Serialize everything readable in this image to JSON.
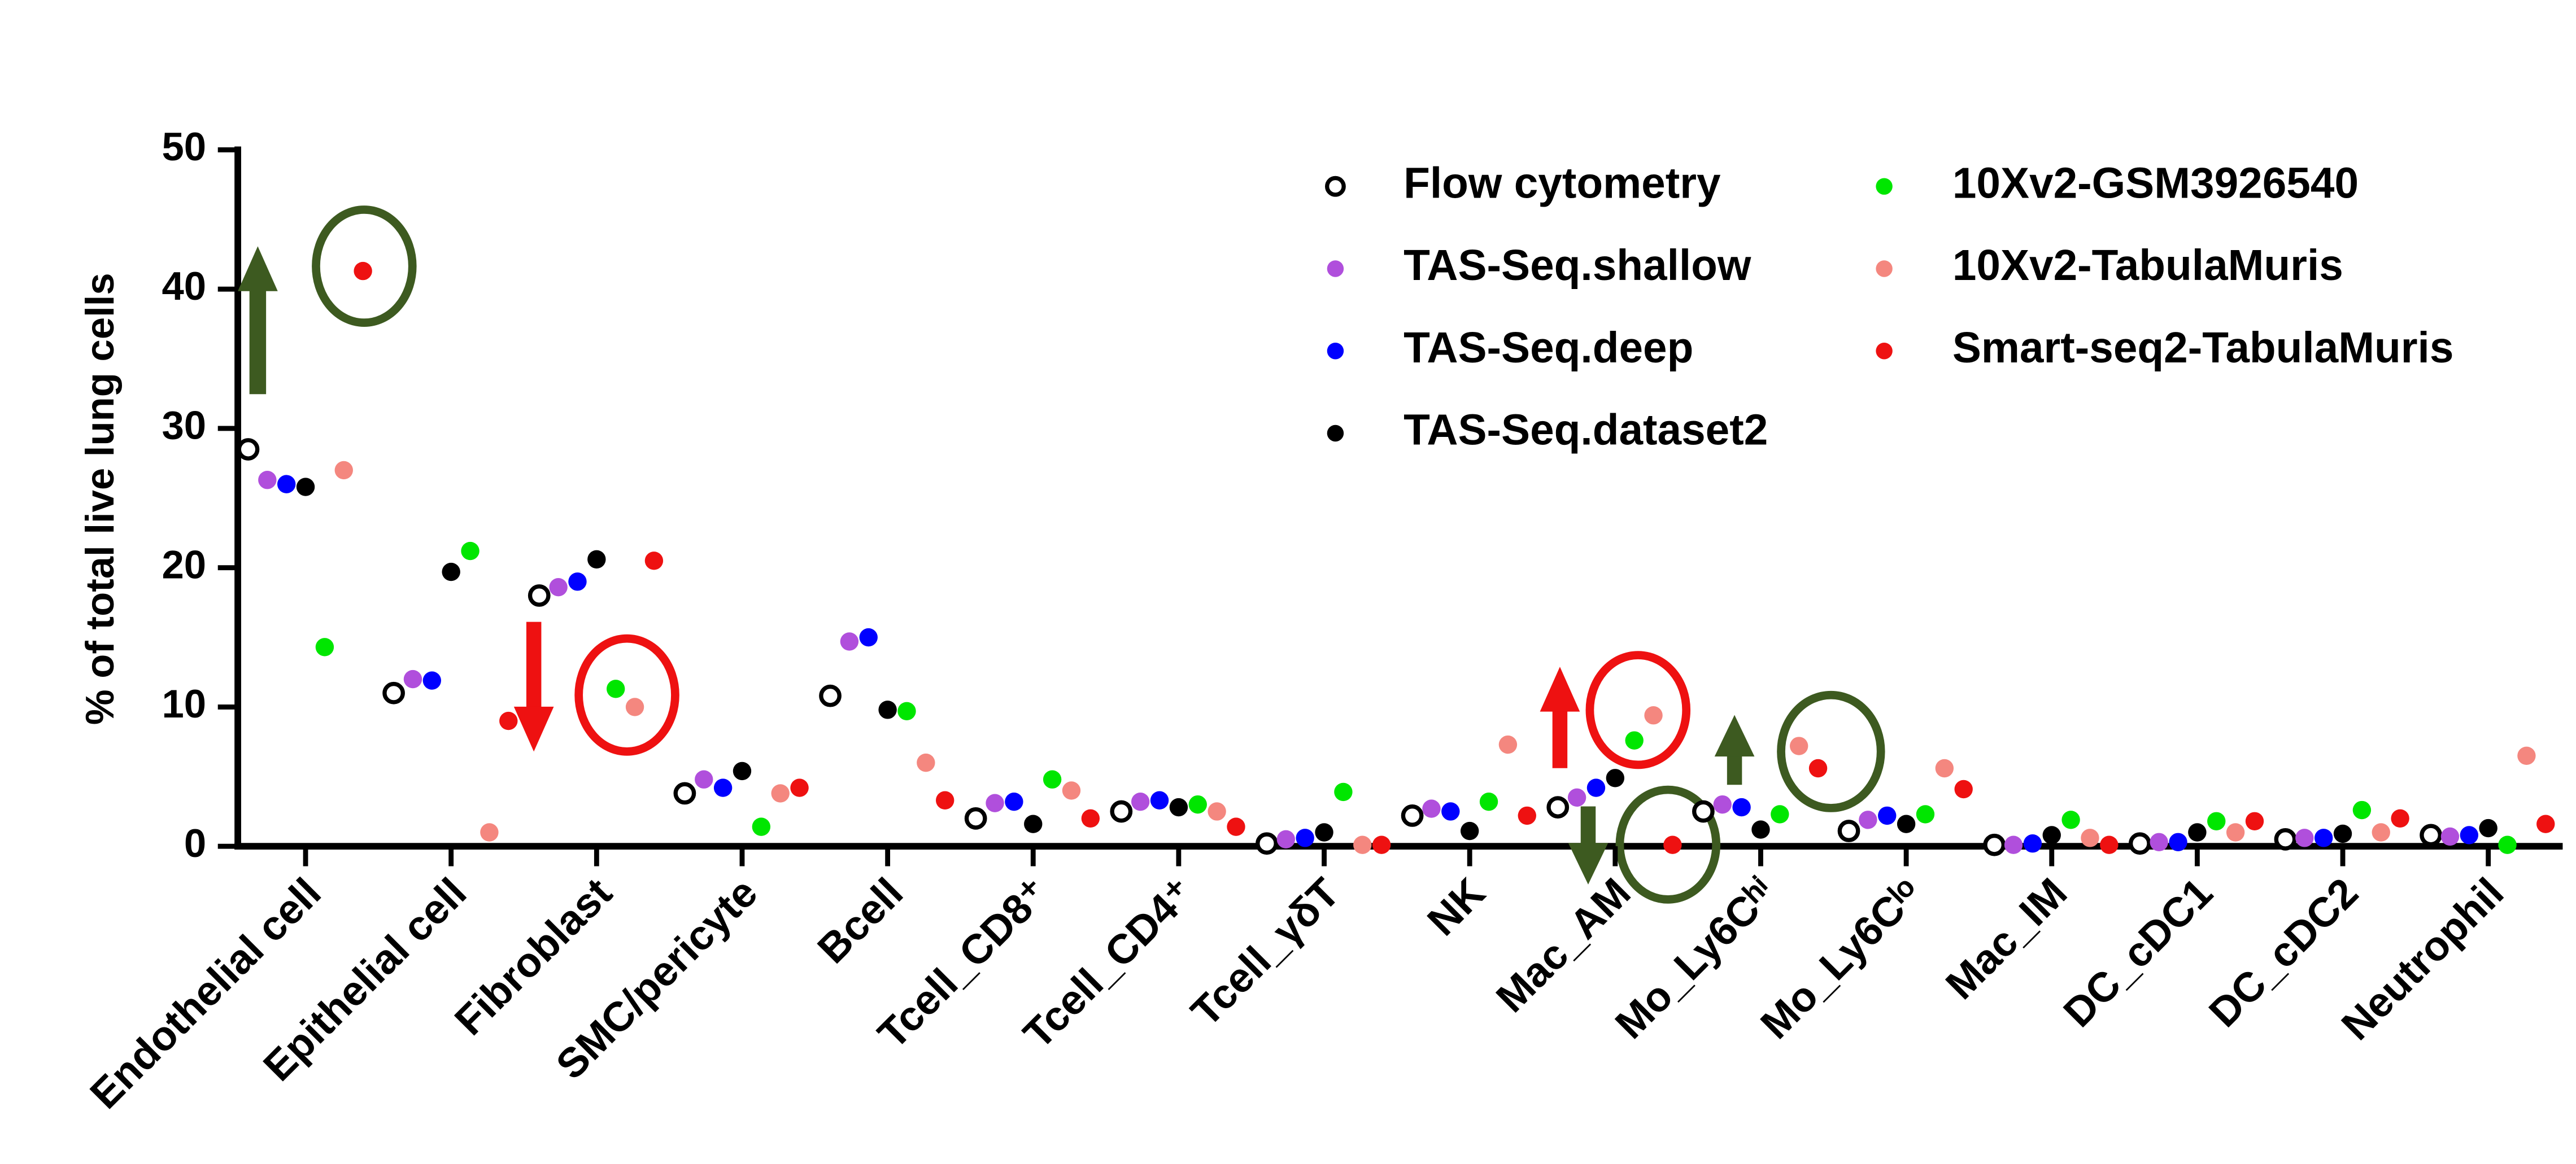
{
  "chart_data": {
    "type": "scatter",
    "y_label": "% of total live lung cells",
    "categories": [
      "Endothelial cell",
      "Epithelial cell",
      "Fibroblast",
      "SMC/pericyte",
      "Bcell",
      "Tcell_CD8⁺",
      "Tcell_CD4⁺",
      "Tcell_γδT",
      "NK",
      "Mac_AM",
      "Mo_Ly6Cʰⁱ",
      "Mo_Ly6Cˡᵒ",
      "Mac_IM",
      "DC_cDC1",
      "DC_cDC2",
      "Neutrophil"
    ],
    "series": [
      {
        "name": "Flow cytometry",
        "color": "#000000",
        "marker": "open",
        "values": [
          28.5,
          11,
          18,
          3.8,
          10.8,
          2,
          2.5,
          0.2,
          2.2,
          2.8,
          2.5,
          1.1,
          0.1,
          0.2,
          0.5,
          0.8
        ]
      },
      {
        "name": "TAS-Seq.shallow",
        "color": "#b04fdc",
        "marker": "filled",
        "values": [
          26.3,
          12,
          18.6,
          4.8,
          14.7,
          3.1,
          3.2,
          0.5,
          2.7,
          3.5,
          3,
          1.9,
          0.1,
          0.3,
          0.6,
          0.7
        ]
      },
      {
        "name": "TAS-Seq.deep",
        "color": "#0000ff",
        "marker": "filled",
        "values": [
          26,
          11.9,
          19,
          4.2,
          15,
          3.2,
          3.3,
          0.6,
          2.5,
          4.2,
          2.8,
          2.2,
          0.2,
          0.3,
          0.6,
          0.8
        ]
      },
      {
        "name": "TAS-Seq.dataset2",
        "color": "#000000",
        "marker": "filled",
        "values": [
          25.8,
          19.7,
          20.6,
          5.4,
          9.8,
          1.6,
          2.8,
          1,
          1.1,
          4.9,
          1.2,
          1.6,
          0.8,
          1,
          0.9,
          1.3
        ]
      },
      {
        "name": "10Xv2-GSM3926540",
        "color": "#00e600",
        "marker": "filled",
        "values": [
          14.3,
          21.2,
          11.3,
          1.4,
          9.7,
          4.8,
          3,
          3.9,
          3.2,
          7.6,
          2.3,
          2.3,
          1.9,
          1.8,
          2.6,
          0.1
        ]
      },
      {
        "name": "10Xv2-TabulaMuris",
        "color": "#f4877f",
        "marker": "filled",
        "values": [
          27,
          1,
          10,
          3.8,
          6,
          4,
          2.5,
          0.1,
          7.3,
          9.4,
          7.2,
          5.6,
          0.6,
          1,
          1,
          6.5
        ]
      },
      {
        "name": "Smart-seq2-TabulaMuris",
        "color": "#ee1111",
        "marker": "filled",
        "values": [
          41.3,
          9,
          20.5,
          4.2,
          3.3,
          2,
          1.4,
          0.1,
          2.2,
          0.1,
          5.6,
          4.1,
          0.1,
          1.8,
          2,
          1.6
        ]
      }
    ],
    "ylim": [
      0,
      50
    ],
    "yticks": [
      0,
      10,
      20,
      30,
      40,
      50
    ],
    "grid": false
  }
}
